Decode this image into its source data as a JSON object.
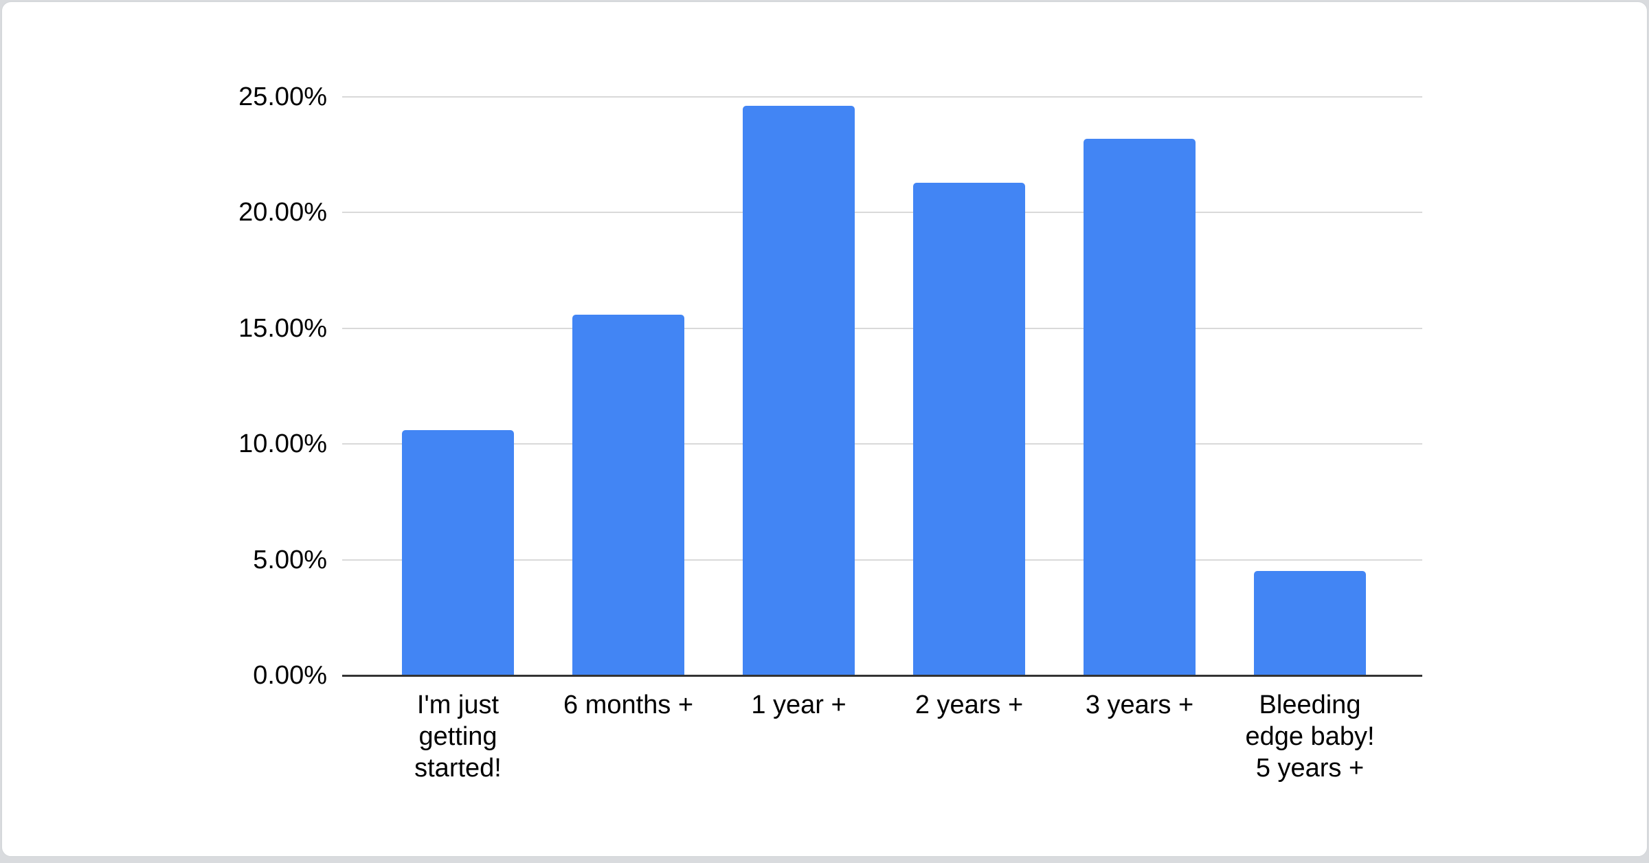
{
  "page": {
    "background_color": "#d9dbde",
    "card_background_color": "#ffffff"
  },
  "chart_data": {
    "type": "bar",
    "title": "",
    "xlabel": "",
    "ylabel": "",
    "categories": [
      "I'm just\ngetting\nstarted!",
      "6 months +",
      "1 year +",
      "2 years +",
      "3 years +",
      "Bleeding\nedge baby!\n5 years +"
    ],
    "values": [
      10.6,
      15.6,
      24.6,
      21.3,
      23.2,
      4.5
    ],
    "unit": "%",
    "ylim": [
      0,
      25
    ],
    "yticks": [
      {
        "value": 0,
        "label": "0.00%"
      },
      {
        "value": 5,
        "label": "5.00%"
      },
      {
        "value": 10,
        "label": "10.00%"
      },
      {
        "value": 15,
        "label": "15.00%"
      },
      {
        "value": 20,
        "label": "20.00%"
      },
      {
        "value": 25,
        "label": "25.00%"
      }
    ],
    "grid": true,
    "legend_position": "none",
    "bar_color": "#4285f4",
    "gridline_color": "#d9d9d9",
    "axis_line_color": "#333333",
    "label_color": "#000000"
  }
}
